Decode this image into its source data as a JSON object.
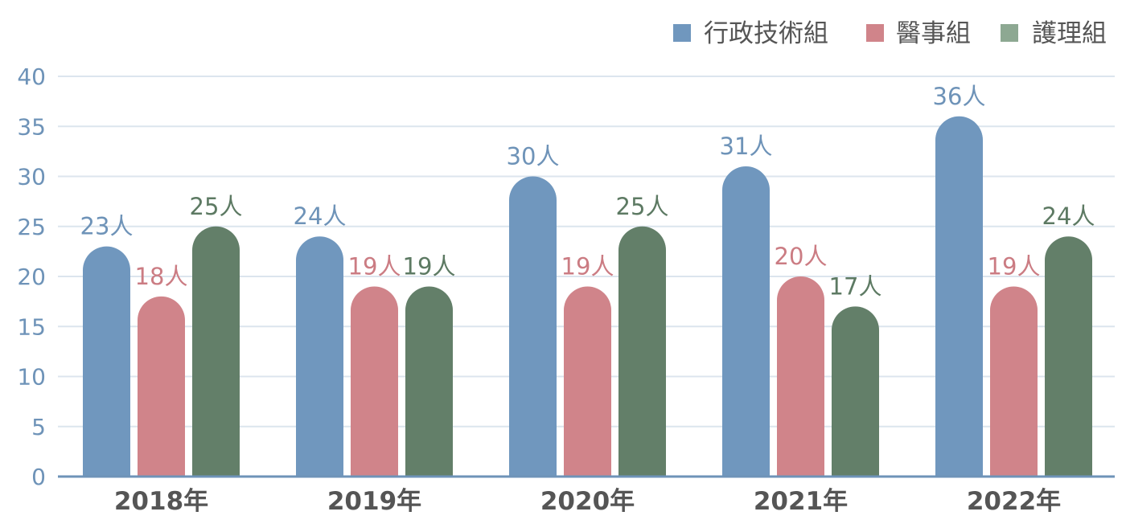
{
  "chart_data": {
    "type": "bar",
    "categories": [
      "2018年",
      "2019年",
      "2020年",
      "2021年",
      "2022年"
    ],
    "series": [
      {
        "name": "行政技術組",
        "values": [
          23,
          24,
          30,
          31,
          36
        ],
        "labels": [
          "23人",
          "24人",
          "30人",
          "31人",
          "36人"
        ],
        "color": "#7097BE",
        "label_color": "#6E93B8"
      },
      {
        "name": "醫事組",
        "values": [
          18,
          19,
          19,
          20,
          19
        ],
        "labels": [
          "18人",
          "19人",
          "19人",
          "20人",
          "19人"
        ],
        "color": "#D0848A",
        "label_color": "#CB7C83"
      },
      {
        "name": "護理組",
        "values": [
          25,
          19,
          25,
          17,
          24
        ],
        "labels": [
          "25人",
          "19人",
          "25人",
          "17人",
          "24人"
        ],
        "color": "#637F69",
        "label_color": "#5D7A63"
      }
    ],
    "y_ticks": [
      "0",
      "5",
      "10",
      "15",
      "20",
      "25",
      "30",
      "35",
      "40"
    ],
    "ylim": [
      0,
      40
    ],
    "grid": true,
    "legend_position": "top-right",
    "colors": {
      "axis_tick_text": "#6E93B8",
      "category_text": "#555555",
      "legend_text": "#555555",
      "grid": "#DCE5EE",
      "baseline": "#6E93B8",
      "legend_swatch_3": "#8DA892"
    }
  }
}
